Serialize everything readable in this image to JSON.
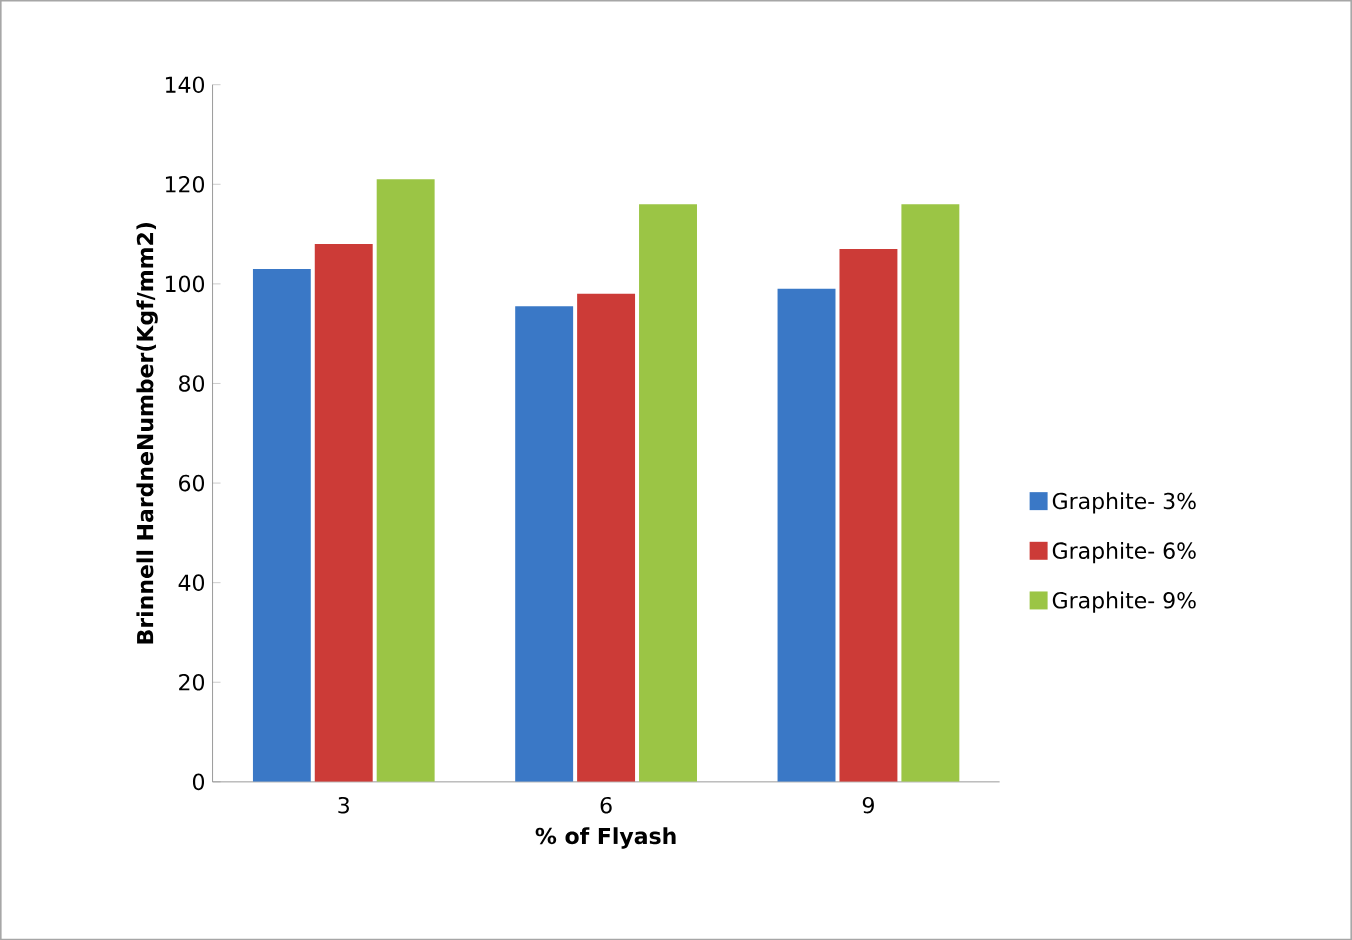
{
  "chart_data": {
    "type": "bar",
    "xlabel": "% of Flyash",
    "ylabel": "Brinnell HardneNumber(Kgf/mm2)",
    "categories": [
      "3",
      "6",
      "9"
    ],
    "series": [
      {
        "name": "Graphite- 3%",
        "color": "#3a78c6",
        "values": [
          103,
          95.5,
          99
        ]
      },
      {
        "name": "Graphite- 6%",
        "color": "#cc3b37",
        "values": [
          108,
          98,
          107
        ]
      },
      {
        "name": "Graphite- 9%",
        "color": "#9bc545",
        "values": [
          121,
          116,
          116
        ]
      }
    ],
    "ylim": [
      0,
      140
    ],
    "yticks": [
      0,
      20,
      40,
      60,
      80,
      100,
      120,
      140
    ],
    "legend": "right",
    "grid": false
  }
}
